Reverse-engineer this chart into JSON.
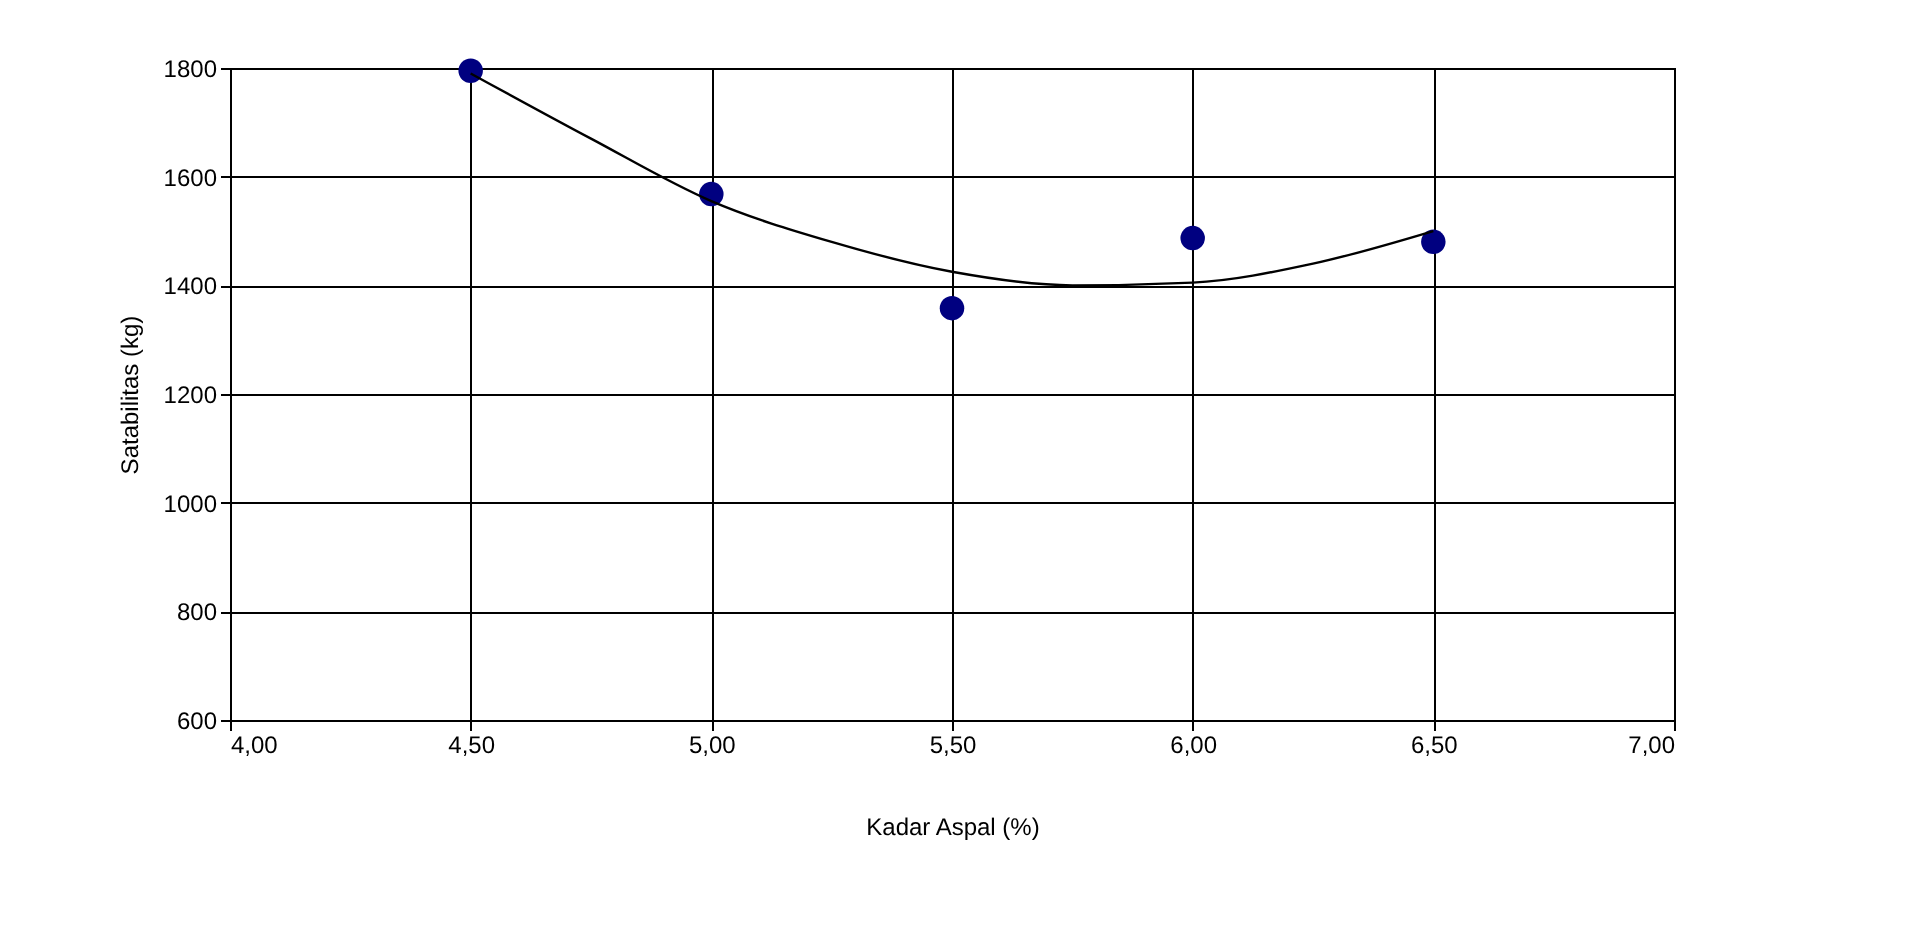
{
  "chart_data": {
    "type": "scatter",
    "xlabel": "Kadar  Aspal   (%)",
    "ylabel": "Satabilitas  (kg)",
    "series": [
      {
        "color": "#000080",
        "marker": "circle",
        "x": [
          4.5,
          5.0,
          5.5,
          6.0,
          6.5
        ],
        "values": [
          1795,
          1568,
          1358,
          1487,
          1480
        ]
      },
      {
        "type": "line",
        "color": "#000000",
        "marker": "none",
        "line_style": "solid",
        "x": [
          4.5,
          4.75,
          5.0,
          5.25,
          5.5,
          5.75,
          6.0,
          6.25,
          6.5
        ],
        "values": [
          1790,
          1670,
          1555,
          1480,
          1425,
          1400,
          1405,
          1440,
          1500
        ]
      }
    ],
    "xlim": [
      4.0,
      7.0
    ],
    "xticks": [
      {
        "value": 4.0,
        "label": "4,00"
      },
      {
        "value": 4.5,
        "label": "4,50"
      },
      {
        "value": 5.0,
        "label": "5,00"
      },
      {
        "value": 5.5,
        "label": "5,50"
      },
      {
        "value": 6.0,
        "label": "6,00"
      },
      {
        "value": 6.5,
        "label": "6,50"
      },
      {
        "value": 7.0,
        "label": "7,00"
      }
    ],
    "ylim": [
      600,
      1800
    ],
    "yticks": [
      600,
      800,
      1000,
      1200,
      1400,
      1600,
      1800
    ],
    "grid": true
  }
}
